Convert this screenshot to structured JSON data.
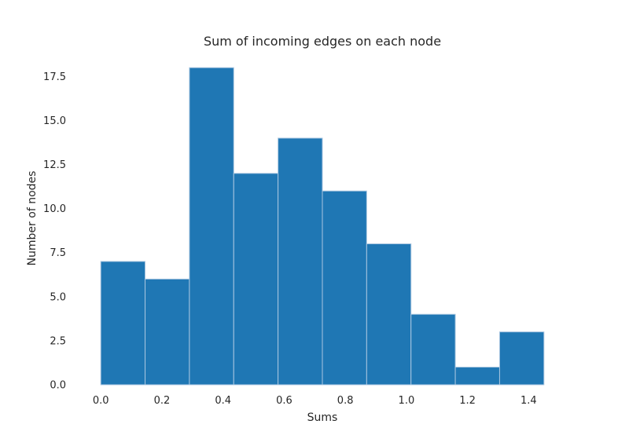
{
  "chart_data": {
    "type": "bar",
    "title": "Sum of incoming edges on each node",
    "xlabel": "Sums",
    "ylabel": "Number of nodes",
    "bin_edges": [
      0.0,
      0.145,
      0.29,
      0.435,
      0.58,
      0.725,
      0.87,
      1.015,
      1.16,
      1.305,
      1.45
    ],
    "values": [
      7,
      6,
      18,
      12,
      14,
      11,
      8,
      4,
      1,
      3
    ],
    "xlim": [
      -0.0725,
      1.5225
    ],
    "ylim": [
      0,
      18.9
    ],
    "xticks": [
      0.0,
      0.2,
      0.4,
      0.6,
      0.8,
      1.0,
      1.2,
      1.4
    ],
    "xtick_labels": [
      "0.0",
      "0.2",
      "0.4",
      "0.6",
      "0.8",
      "1.0",
      "1.2",
      "1.4"
    ],
    "yticks": [
      0.0,
      2.5,
      5.0,
      7.5,
      10.0,
      12.5,
      15.0,
      17.5
    ],
    "ytick_labels": [
      "0.0",
      "2.5",
      "5.0",
      "7.5",
      "10.0",
      "12.5",
      "15.0",
      "17.5"
    ],
    "grid": false,
    "bar_color": "#1f77b4",
    "edge_color": "#a9c6e0"
  }
}
